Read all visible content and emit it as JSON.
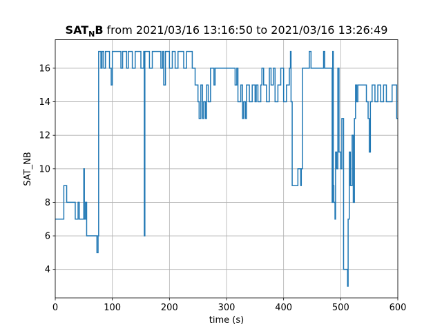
{
  "chart_data": {
    "type": "line",
    "drawstyle": "steps",
    "title": {
      "main": "SAT",
      "subscript": "N",
      "suffix": "B",
      "rest": "from 2021/03/16 13:16:50 to 2021/03/16 13:26:49"
    },
    "xlabel": "time (s)",
    "ylabel": "SAT_NB",
    "xlim": [
      0,
      600
    ],
    "xticks": [
      0,
      100,
      200,
      300,
      400,
      500,
      600
    ],
    "ylim": [
      2.3,
      17.7
    ],
    "yticks": [
      4,
      6,
      8,
      10,
      12,
      14,
      16
    ],
    "grid": true,
    "series": [
      {
        "color": "#1f77b4",
        "x": [
          0,
          15,
          20,
          35,
          40,
          42,
          50,
          51,
          53,
          55,
          73,
          75,
          76,
          80,
          82,
          85,
          88,
          95,
          98,
          100,
          115,
          118,
          125,
          128,
          135,
          140,
          150,
          155,
          156,
          157,
          165,
          170,
          185,
          188,
          190,
          193,
          200,
          205,
          210,
          215,
          225,
          230,
          240,
          245,
          250,
          252,
          255,
          258,
          260,
          263,
          265,
          268,
          272,
          278,
          280,
          315,
          318,
          320,
          325,
          328,
          330,
          333,
          335,
          340,
          345,
          350,
          352,
          355,
          360,
          362,
          365,
          370,
          375,
          378,
          382,
          385,
          390,
          395,
          400,
          405,
          410,
          412,
          413,
          415,
          425,
          430,
          431,
          433,
          445,
          448,
          470,
          472,
          485,
          486,
          487,
          488,
          490,
          491,
          493,
          495,
          497,
          500,
          502,
          505,
          512,
          513,
          515,
          517,
          520,
          522,
          524,
          526,
          528,
          530,
          545,
          548,
          550,
          552,
          555,
          560,
          565,
          570,
          575,
          580,
          590,
          598,
          600
        ],
        "values": [
          7,
          9,
          8,
          7,
          8,
          7,
          10,
          7,
          8,
          6,
          5,
          6,
          17,
          16,
          17,
          16,
          17,
          16,
          15,
          17,
          16,
          17,
          16,
          17,
          16,
          17,
          16,
          17,
          6,
          17,
          16,
          17,
          16,
          17,
          15,
          17,
          16,
          17,
          16,
          17,
          16,
          17,
          16,
          15,
          14,
          13,
          15,
          13,
          14,
          13,
          15,
          14,
          16,
          15,
          16,
          15,
          16,
          14,
          15,
          13,
          14,
          13,
          15,
          14,
          15,
          14,
          15,
          14,
          15,
          16,
          15,
          14,
          16,
          15,
          16,
          14,
          15,
          16,
          14,
          15,
          16,
          17,
          14,
          9,
          10,
          9,
          10,
          16,
          17,
          16,
          17,
          16,
          8,
          17,
          9,
          8,
          7,
          11,
          10,
          16,
          11,
          10,
          13,
          4,
          3,
          7,
          11,
          9,
          12,
          8,
          13,
          15,
          14,
          15,
          14,
          13,
          11,
          14,
          15,
          14,
          15,
          14,
          15,
          14,
          15,
          13,
          13
        ]
      }
    ]
  }
}
